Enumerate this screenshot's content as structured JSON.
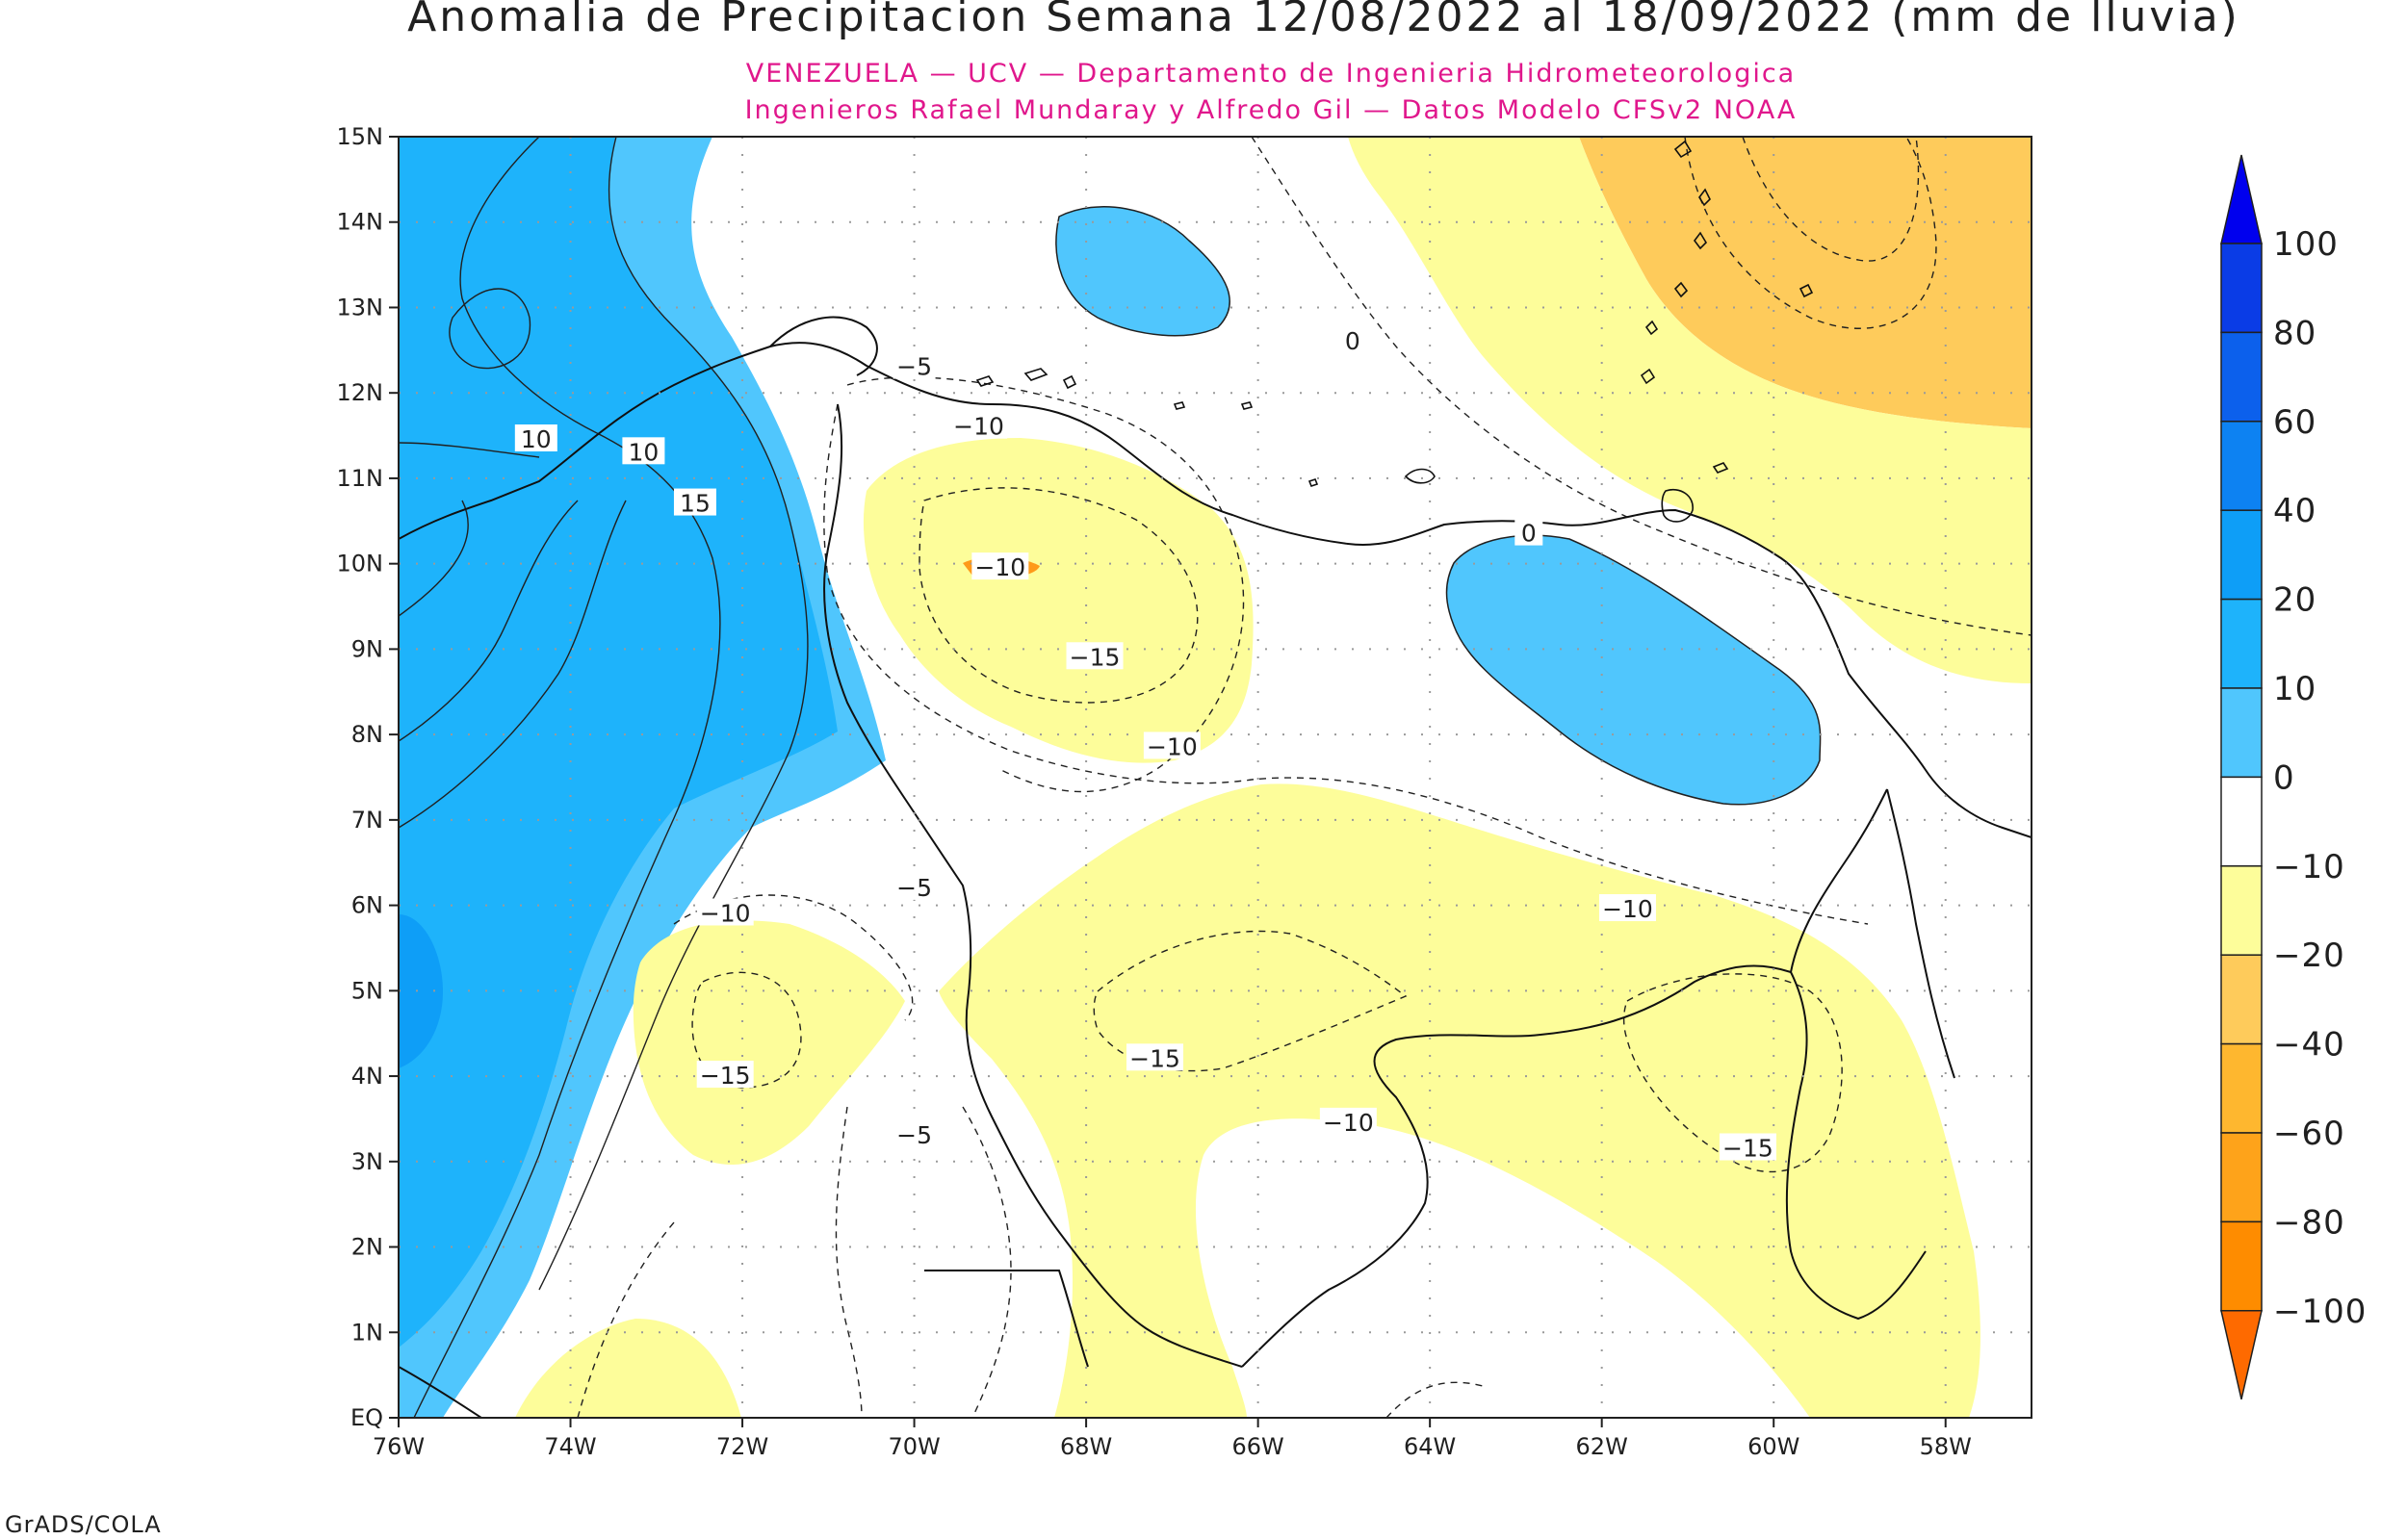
{
  "title": "Anomalia de Precipitacion Semana 12/08/2022 al 18/09/2022 (mm de lluvia)",
  "subtitle_line1": "VENEZUELA — UCV — Departamento de Ingenieria Hidrometeorologica",
  "subtitle_line2": "Ingenieros Rafael Mundaray y Alfredo Gil — Datos Modelo CFSv2 NOAA",
  "subtitle_color": "#e0178c",
  "credit": "GrADS/COLA",
  "map": {
    "lon_range": [
      -76,
      -57
    ],
    "lat_range": [
      0,
      15
    ],
    "lon_ticks": [
      {
        "value": -76,
        "label": "76W"
      },
      {
        "value": -74,
        "label": "74W"
      },
      {
        "value": -72,
        "label": "72W"
      },
      {
        "value": -70,
        "label": "70W"
      },
      {
        "value": -68,
        "label": "68W"
      },
      {
        "value": -66,
        "label": "66W"
      },
      {
        "value": -64,
        "label": "64W"
      },
      {
        "value": -62,
        "label": "62W"
      },
      {
        "value": -60,
        "label": "60W"
      },
      {
        "value": -58,
        "label": "58W"
      }
    ],
    "lat_ticks": [
      {
        "value": 0,
        "label": "EQ"
      },
      {
        "value": 1,
        "label": "1N"
      },
      {
        "value": 2,
        "label": "2N"
      },
      {
        "value": 3,
        "label": "3N"
      },
      {
        "value": 4,
        "label": "4N"
      },
      {
        "value": 5,
        "label": "5N"
      },
      {
        "value": 6,
        "label": "6N"
      },
      {
        "value": 7,
        "label": "7N"
      },
      {
        "value": 8,
        "label": "8N"
      },
      {
        "value": 9,
        "label": "9N"
      },
      {
        "value": 10,
        "label": "10N"
      },
      {
        "value": 11,
        "label": "11N"
      },
      {
        "value": 12,
        "label": "12N"
      },
      {
        "value": 13,
        "label": "13N"
      },
      {
        "value": 14,
        "label": "14N"
      },
      {
        "value": 15,
        "label": "15N"
      }
    ],
    "contour_labels": [
      {
        "text": "10",
        "lon": -74.4,
        "lat": 11.45
      },
      {
        "text": "10",
        "lon": -73.15,
        "lat": 11.3
      },
      {
        "text": "15",
        "lon": -72.55,
        "lat": 10.7
      },
      {
        "text": "0",
        "lon": -62.85,
        "lat": 10.35
      },
      {
        "text": "0",
        "lon": -64.9,
        "lat": 12.6
      },
      {
        "text": "−5",
        "lon": -70.0,
        "lat": 12.3
      },
      {
        "text": "−10",
        "lon": -69.25,
        "lat": 11.6
      },
      {
        "text": "−10",
        "lon": -69.0,
        "lat": 9.95
      },
      {
        "text": "−15",
        "lon": -67.9,
        "lat": 8.9
      },
      {
        "text": "−10",
        "lon": -67.0,
        "lat": 7.85
      },
      {
        "text": "−5",
        "lon": -70.0,
        "lat": 6.2
      },
      {
        "text": "−10",
        "lon": -72.2,
        "lat": 5.9
      },
      {
        "text": "−15",
        "lon": -72.2,
        "lat": 4.0
      },
      {
        "text": "−5",
        "lon": -70.0,
        "lat": 3.3
      },
      {
        "text": "−15",
        "lon": -67.2,
        "lat": 4.2
      },
      {
        "text": "−10",
        "lon": -64.95,
        "lat": 3.45
      },
      {
        "text": "−10",
        "lon": -61.7,
        "lat": 5.95
      },
      {
        "text": "−15",
        "lon": -60.3,
        "lat": 3.15
      }
    ]
  },
  "legend": {
    "label_values": [
      "100",
      "80",
      "60",
      "40",
      "20",
      "10",
      "0",
      "−10",
      "−20",
      "−40",
      "−60",
      "−80",
      "−100"
    ],
    "bins": [
      {
        "from": 80,
        "to": 100,
        "color": "#0a3ce6"
      },
      {
        "from": 60,
        "to": 80,
        "color": "#0c60ec"
      },
      {
        "from": 40,
        "to": 60,
        "color": "#0d82f2"
      },
      {
        "from": 20,
        "to": 40,
        "color": "#0e9ef7"
      },
      {
        "from": 10,
        "to": 20,
        "color": "#1eb3fb"
      },
      {
        "from": 0,
        "to": 10,
        "color": "#50c6fd"
      },
      {
        "from": -10,
        "to": 0,
        "color": "#ffffff"
      },
      {
        "from": -20,
        "to": -10,
        "color": "#fdfd9a"
      },
      {
        "from": -40,
        "to": -20,
        "color": "#fecb5b"
      },
      {
        "from": -60,
        "to": -40,
        "color": "#feb72f"
      },
      {
        "from": -80,
        "to": -60,
        "color": "#fea31a"
      },
      {
        "from": -100,
        "to": -80,
        "color": "#fe8c00"
      }
    ],
    "arrow_top_color": "#0000ee",
    "arrow_bottom_color": "#fe6a00"
  }
}
